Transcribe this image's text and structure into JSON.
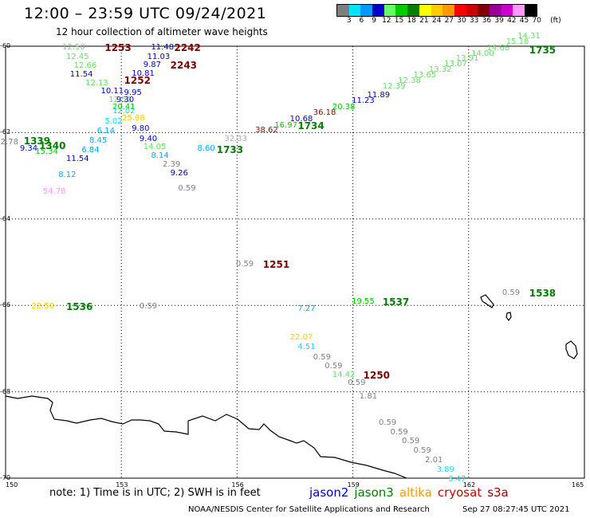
{
  "header": {
    "title": "12:00 – 23:59 UTC 09/24/2021",
    "subtitle": "12 hour collection of altimeter wave heights"
  },
  "legend": {
    "unit": "(ft)",
    "levels": [
      {
        "label": "3",
        "color": "#7f7f7f"
      },
      {
        "label": "6",
        "color": "#00e5ff"
      },
      {
        "label": "9",
        "color": "#0099ff"
      },
      {
        "label": "12",
        "color": "#0000cc"
      },
      {
        "label": "15",
        "color": "#66ff66"
      },
      {
        "label": "18",
        "color": "#00cc00"
      },
      {
        "label": "21",
        "color": "#008000"
      },
      {
        "label": "24",
        "color": "#ffff00"
      },
      {
        "label": "27",
        "color": "#ffcc00"
      },
      {
        "label": "30",
        "color": "#ff9900"
      },
      {
        "label": "33",
        "color": "#ff0000"
      },
      {
        "label": "36",
        "color": "#cc0000"
      },
      {
        "label": "39",
        "color": "#800000"
      },
      {
        "label": "42",
        "color": "#990099"
      },
      {
        "label": "45",
        "color": "#cc00cc"
      },
      {
        "label": "70",
        "color": "#ff99ff"
      },
      {
        "label": "",
        "color": "#000000"
      }
    ]
  },
  "axes": {
    "lat_labels": [
      "-60",
      "-62",
      "-64",
      "-66",
      "-68",
      "-70"
    ],
    "lon_labels": [
      "150",
      "153",
      "156",
      "159",
      "162",
      "165"
    ]
  },
  "observations": [
    {
      "text": "12.50",
      "color": "#66dd66",
      "lon": 151.8,
      "lat": -60.04
    },
    {
      "text": "12.45",
      "color": "#66dd66",
      "lon": 151.9,
      "lat": -60.25
    },
    {
      "text": "12.66",
      "color": "#66dd66",
      "lon": 152.1,
      "lat": -60.46
    },
    {
      "text": "11.54",
      "color": "#0000cc",
      "lon": 152.0,
      "lat": -60.66
    },
    {
      "text": "12.13",
      "color": "#66dd66",
      "lon": 152.4,
      "lat": -60.86
    },
    {
      "text": "10.11",
      "color": "#0000cc",
      "lon": 152.8,
      "lat": -61.06
    },
    {
      "text": "12.50",
      "color": "#66dd66",
      "lon": 153.0,
      "lat": -61.26
    },
    {
      "text": "9.30",
      "color": "#0000cc",
      "lon": 153.2,
      "lat": -61.26
    },
    {
      "text": "20.41",
      "color": "#00cc00",
      "lon": 153.1,
      "lat": -61.42
    },
    {
      "text": "12.02",
      "color": "#00e5ff",
      "lon": 153.1,
      "lat": -61.52
    },
    {
      "text": "5.02",
      "color": "#00e5ff",
      "lon": 152.9,
      "lat": -61.75
    },
    {
      "text": "25.98",
      "color": "#ffcc00",
      "lon": 153.35,
      "lat": -61.68
    },
    {
      "text": "9.80",
      "color": "#0000cc",
      "lon": 153.6,
      "lat": -61.92
    },
    {
      "text": "6.14",
      "color": "#00aaff",
      "lon": 152.7,
      "lat": -61.98
    },
    {
      "text": "9.40",
      "color": "#0000cc",
      "lon": 153.8,
      "lat": -62.15
    },
    {
      "text": "8.45",
      "color": "#00aaff",
      "lon": 152.5,
      "lat": -62.2
    },
    {
      "text": "14.05",
      "color": "#66dd66",
      "lon": 153.9,
      "lat": -62.35
    },
    {
      "text": "6.84",
      "color": "#00aaff",
      "lon": 152.3,
      "lat": -62.42
    },
    {
      "text": "8.14",
      "color": "#00aaff",
      "lon": 154.1,
      "lat": -62.55
    },
    {
      "text": "11.54",
      "color": "#0000cc",
      "lon": 151.9,
      "lat": -62.62
    },
    {
      "text": "2.39",
      "color": "#7f7f7f",
      "lon": 154.4,
      "lat": -62.75
    },
    {
      "text": "8.12",
      "color": "#00aaff",
      "lon": 151.7,
      "lat": -62.98
    },
    {
      "text": "9.26",
      "color": "#0000cc",
      "lon": 154.6,
      "lat": -62.96
    },
    {
      "text": "0.59",
      "color": "#7f7f7f",
      "lon": 154.8,
      "lat": -63.3
    },
    {
      "text": "54.78",
      "color": "#ff99ff",
      "lon": 151.3,
      "lat": -63.38
    },
    {
      "text": "2.78",
      "color": "#7f7f7f",
      "lon": 150.2,
      "lat": -62.23
    },
    {
      "text": "9.34",
      "color": "#0000cc",
      "lon": 150.7,
      "lat": -62.38
    },
    {
      "text": "15.34",
      "color": "#00cc00",
      "lon": 151.1,
      "lat": -62.45
    },
    {
      "text": "11.48",
      "color": "#0000cc",
      "lon": 154.1,
      "lat": -60.04
    },
    {
      "text": "11.03",
      "color": "#0000cc",
      "lon": 154.0,
      "lat": -60.25
    },
    {
      "text": "9.87",
      "color": "#0000cc",
      "lon": 153.9,
      "lat": -60.45
    },
    {
      "text": "10.81",
      "color": "#0000cc",
      "lon": 153.6,
      "lat": -60.65
    },
    {
      "text": "9.95",
      "color": "#0000cc",
      "lon": 153.4,
      "lat": -61.08
    },
    {
      "text": "8.60",
      "color": "#00aaff",
      "lon": 155.3,
      "lat": -62.38
    },
    {
      "text": "32.33",
      "color": "#aaaaaa",
      "lon": 156.0,
      "lat": -62.15
    },
    {
      "text": "38.62",
      "color": "#990000",
      "lon": 156.8,
      "lat": -61.95
    },
    {
      "text": "16.97",
      "color": "#00cc00",
      "lon": 157.3,
      "lat": -61.85
    },
    {
      "text": "10.68",
      "color": "#0000cc",
      "lon": 157.7,
      "lat": -61.7
    },
    {
      "text": "36.18",
      "color": "#990000",
      "lon": 158.3,
      "lat": -61.55
    },
    {
      "text": "20.38",
      "color": "#00cc00",
      "lon": 158.8,
      "lat": -61.42
    },
    {
      "text": "11.23",
      "color": "#0000cc",
      "lon": 159.3,
      "lat": -61.28
    },
    {
      "text": "11.89",
      "color": "#0000cc",
      "lon": 159.7,
      "lat": -61.15
    },
    {
      "text": "12.39",
      "color": "#66dd66",
      "lon": 160.1,
      "lat": -60.95
    },
    {
      "text": "12.38",
      "color": "#66dd66",
      "lon": 160.5,
      "lat": -60.82
    },
    {
      "text": "13.65",
      "color": "#66dd66",
      "lon": 160.9,
      "lat": -60.68
    },
    {
      "text": "13.32",
      "color": "#66dd66",
      "lon": 161.3,
      "lat": -60.55
    },
    {
      "text": "13.07",
      "color": "#66dd66",
      "lon": 161.7,
      "lat": -60.42
    },
    {
      "text": "13.91",
      "color": "#66dd66",
      "lon": 162.0,
      "lat": -60.3
    },
    {
      "text": "14.00",
      "color": "#66dd66",
      "lon": 162.4,
      "lat": -60.18
    },
    {
      "text": "14.66",
      "color": "#66dd66",
      "lon": 162.8,
      "lat": -60.05
    },
    {
      "text": "15.18",
      "color": "#66dd66",
      "lon": 163.3,
      "lat": -59.9
    },
    {
      "text": "14.31",
      "color": "#66dd66",
      "lon": 163.6,
      "lat": -59.78
    },
    {
      "text": "0.59",
      "color": "#7f7f7f",
      "lon": 156.3,
      "lat": -65.06
    },
    {
      "text": "22.50",
      "color": "#ffcc00",
      "lon": 151.0,
      "lat": -66.03
    },
    {
      "text": "0.59",
      "color": "#7f7f7f",
      "lon": 153.8,
      "lat": -66.03
    },
    {
      "text": "7.27",
      "color": "#00aaff",
      "lon": 157.9,
      "lat": -66.08
    },
    {
      "text": "19.55",
      "color": "#00cc00",
      "lon": 159.3,
      "lat": -65.93
    },
    {
      "text": "0.59",
      "color": "#7f7f7f",
      "lon": 163.2,
      "lat": -65.72
    },
    {
      "text": "22.07",
      "color": "#ffcc00",
      "lon": 157.7,
      "lat": -66.76
    },
    {
      "text": "4.51",
      "color": "#00e5ff",
      "lon": 157.9,
      "lat": -66.98
    },
    {
      "text": "0.59",
      "color": "#7f7f7f",
      "lon": 158.3,
      "lat": -67.22
    },
    {
      "text": "0.59",
      "color": "#7f7f7f",
      "lon": 158.6,
      "lat": -67.42
    },
    {
      "text": "14.42",
      "color": "#66dd66",
      "lon": 158.8,
      "lat": -67.62
    },
    {
      "text": "0.59",
      "color": "#7f7f7f",
      "lon": 159.2,
      "lat": -67.8
    },
    {
      "text": "1.81",
      "color": "#7f7f7f",
      "lon": 159.5,
      "lat": -68.12
    },
    {
      "text": "0.59",
      "color": "#7f7f7f",
      "lon": 160.0,
      "lat": -68.72
    },
    {
      "text": "0.59",
      "color": "#7f7f7f",
      "lon": 160.3,
      "lat": -68.94
    },
    {
      "text": "0.59",
      "color": "#7f7f7f",
      "lon": 160.6,
      "lat": -69.16
    },
    {
      "text": "0.59",
      "color": "#7f7f7f",
      "lon": 160.9,
      "lat": -69.38
    },
    {
      "text": "2.01",
      "color": "#7f7f7f",
      "lon": 161.2,
      "lat": -69.6
    },
    {
      "text": "3.89",
      "color": "#00e5ff",
      "lon": 161.5,
      "lat": -69.82
    },
    {
      "text": "3.47",
      "color": "#00e5ff",
      "lon": 161.8,
      "lat": -70.04
    }
  ],
  "times": [
    {
      "text": "1253",
      "color": "#800000",
      "lon": 152.9,
      "lat": -60.04
    },
    {
      "text": "2242",
      "color": "#800000",
      "lon": 154.7,
      "lat": -60.04
    },
    {
      "text": "2243",
      "color": "#800000",
      "lon": 154.6,
      "lat": -60.45
    },
    {
      "text": "1252",
      "color": "#800000",
      "lon": 153.4,
      "lat": -60.8
    },
    {
      "text": "1339",
      "color": "#008000",
      "lon": 150.8,
      "lat": -62.2
    },
    {
      "text": "1340",
      "color": "#008000",
      "lon": 151.2,
      "lat": -62.3
    },
    {
      "text": "1733",
      "color": "#008000",
      "lon": 155.8,
      "lat": -62.4
    },
    {
      "text": "1734",
      "color": "#008000",
      "lon": 157.9,
      "lat": -61.85
    },
    {
      "text": "1735",
      "color": "#008000",
      "lon": 163.9,
      "lat": -60.1
    },
    {
      "text": "1251",
      "color": "#800000",
      "lon": 157.0,
      "lat": -65.06
    },
    {
      "text": "1536",
      "color": "#008000",
      "lon": 151.9,
      "lat": -66.03
    },
    {
      "text": "1537",
      "color": "#008000",
      "lon": 160.1,
      "lat": -65.93
    },
    {
      "text": "1538",
      "color": "#008000",
      "lon": 163.9,
      "lat": -65.72
    },
    {
      "text": "1250",
      "color": "#800000",
      "lon": 159.6,
      "lat": -67.62
    }
  ],
  "footer": {
    "note": "note:  1) Time is in UTC;  2) SWH is in feet",
    "satellites": [
      {
        "name": "jason2",
        "color": "#0000cc"
      },
      {
        "name": "jason3",
        "color": "#008000"
      },
      {
        "name": "altika",
        "color": "#ff9900"
      },
      {
        "name": "cryosat",
        "color": "#cc0000"
      },
      {
        "name": "s3a",
        "color": "#990000"
      }
    ],
    "credit": "NOAA/NESDIS Center for Satellite Applications and Research",
    "timestamp": "Sep 27 08:27:45 UTC 2021"
  }
}
